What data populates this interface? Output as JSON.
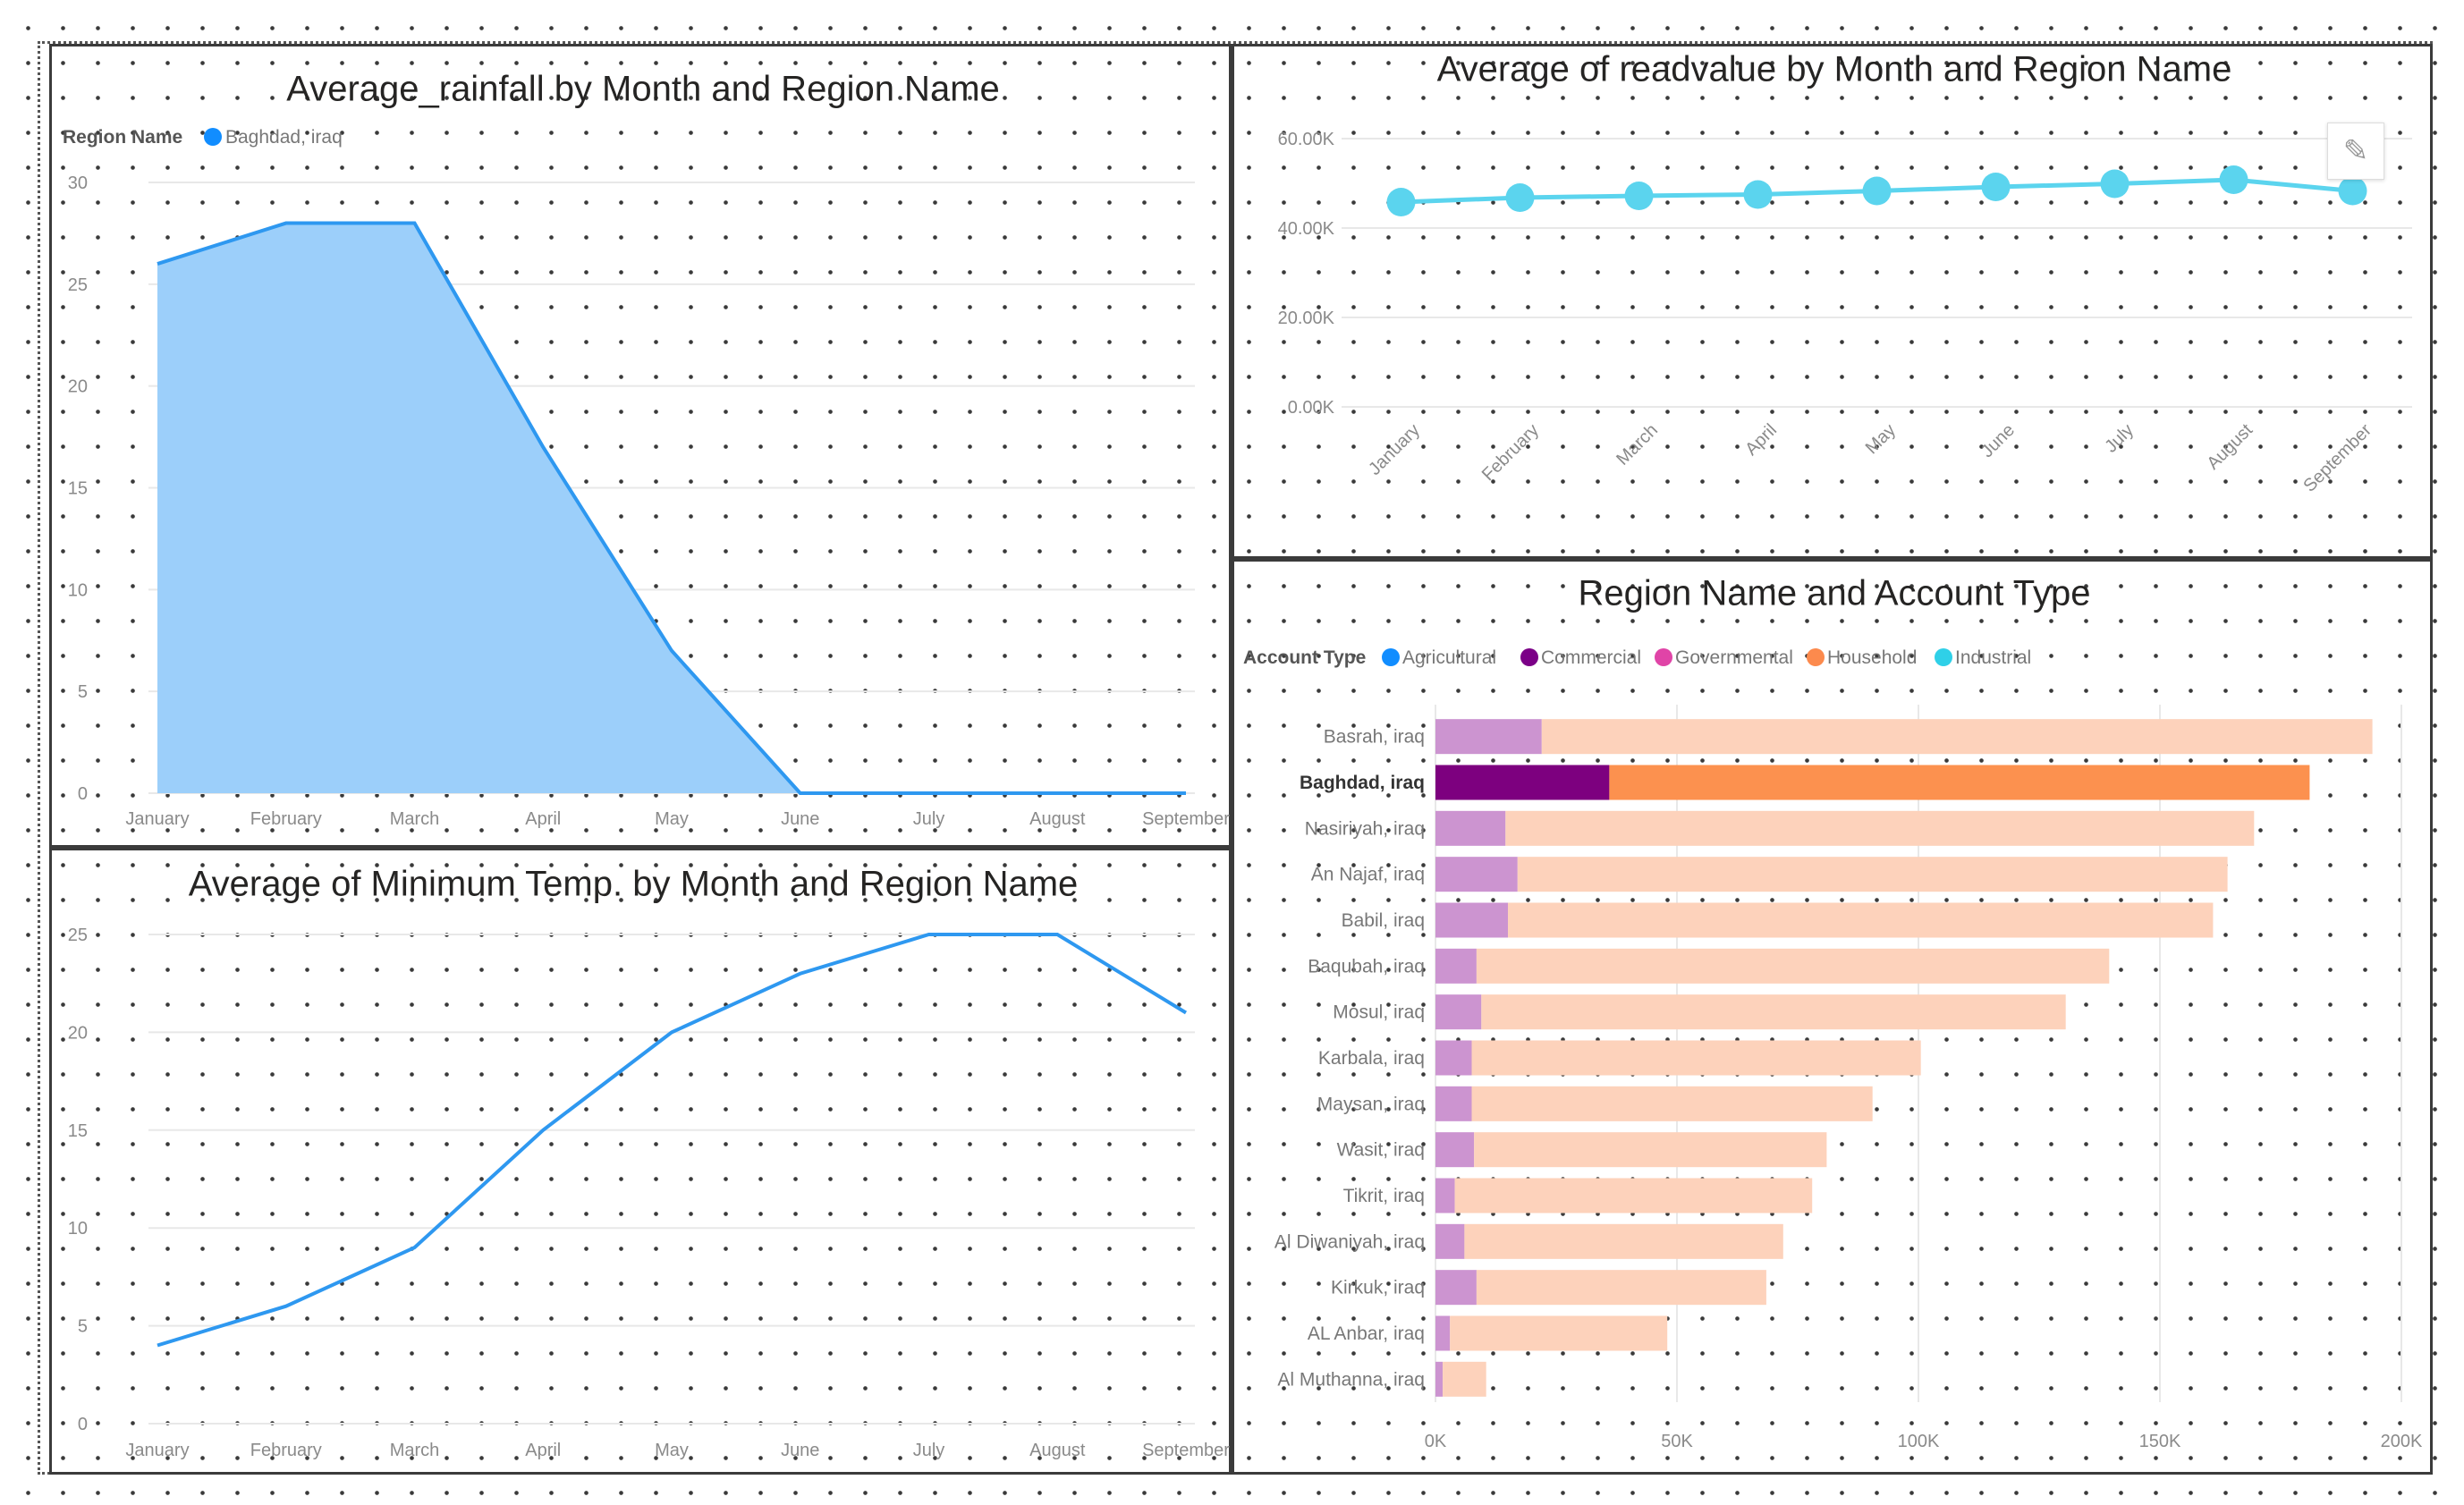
{
  "colors": {
    "rain_fill": "#9ccffa",
    "rain_line": "#2e98f0",
    "temp_line": "#2e98f0",
    "read_line": "#5bd4ee",
    "grid": "#e8e8e8",
    "agri": "#118dff",
    "commercial": "#7b0087",
    "governmental": "#e044a7",
    "household": "#fc8a4d",
    "industrial": "#2fd0e8",
    "commercial_faded": "#cc94d0",
    "household_faded": "#fdd2bb",
    "household_highlight": "#fc914f",
    "commercial_highlight": "#7d007f"
  },
  "chart_data": [
    {
      "id": "rainfall",
      "type": "area",
      "title": "Average_rainfall by Month and Region Name",
      "legend_title": "Region Name",
      "legend": [
        "Baghdad, iraq"
      ],
      "categories": [
        "January",
        "February",
        "March",
        "April",
        "May",
        "June",
        "July",
        "August",
        "September"
      ],
      "series": [
        {
          "name": "Baghdad, iraq",
          "values": [
            26,
            28,
            28,
            17,
            7,
            0,
            0,
            0,
            0
          ]
        }
      ],
      "ylim": [
        0,
        30
      ],
      "yticks": [
        0,
        5,
        10,
        15,
        20,
        25,
        30
      ],
      "ytick_labels": [
        "0",
        "5",
        "10",
        "15",
        "20",
        "25",
        "30"
      ]
    },
    {
      "id": "readvalue",
      "type": "line",
      "title": "Average of readvalue by Month and Region Name",
      "categories": [
        "January",
        "February",
        "March",
        "April",
        "May",
        "June",
        "July",
        "August",
        "September"
      ],
      "series": [
        {
          "name": "Baghdad, iraq",
          "values": [
            45800,
            46800,
            47200,
            47500,
            48300,
            49200,
            49900,
            50800,
            48300
          ]
        }
      ],
      "ylim": [
        0,
        60000
      ],
      "yticks": [
        0,
        20000,
        40000,
        60000
      ],
      "ytick_labels": [
        "0.00K",
        "20.00K",
        "40.00K",
        "60.00K"
      ]
    },
    {
      "id": "mintemp",
      "type": "line",
      "title": "Average of Minimum Temp. by Month and Region Name",
      "categories": [
        "January",
        "February",
        "March",
        "April",
        "May",
        "June",
        "July",
        "August",
        "September"
      ],
      "series": [
        {
          "name": "Baghdad, iraq",
          "values": [
            4,
            6,
            9,
            15,
            20,
            23,
            25,
            25,
            21
          ]
        }
      ],
      "ylim": [
        0,
        25
      ],
      "yticks": [
        0,
        5,
        10,
        15,
        20,
        25
      ],
      "ytick_labels": [
        "0",
        "5",
        "10",
        "15",
        "20",
        "25"
      ]
    },
    {
      "id": "account",
      "type": "bar",
      "orientation": "horizontal",
      "stacked": true,
      "title": "Region Name and Account Type",
      "legend_title": "Account Type",
      "legend": [
        "Agricultural",
        "Commercial",
        "Governmental",
        "Household",
        "Industrial"
      ],
      "highlighted": "Baghdad, iraq",
      "categories": [
        "Basrah, iraq",
        "Baghdad, iraq",
        "Nasiriyah, iraq",
        "An Najaf, iraq",
        "Babil, iraq",
        "Baqubah, iraq",
        "Mosul, iraq",
        "Karbala, iraq",
        "Maysan, iraq",
        "Wasit, iraq",
        "Tikrit, iraq",
        "Al Diwaniyah, iraq",
        "Kirkuk, iraq",
        "AL Anbar, iraq",
        "Al Muthanna, iraq"
      ],
      "series": [
        {
          "name": "Commercial",
          "values": [
            22000,
            36000,
            14500,
            17000,
            15000,
            8500,
            9500,
            7500,
            7500,
            8000,
            4000,
            6000,
            8500,
            3000,
            1500
          ]
        },
        {
          "name": "Household",
          "values": [
            172000,
            145000,
            155000,
            147000,
            146000,
            131000,
            121000,
            93000,
            83000,
            73000,
            74000,
            66000,
            60000,
            45000,
            9000
          ]
        }
      ],
      "xlim": [
        0,
        200000
      ],
      "xticks": [
        0,
        50000,
        100000,
        150000,
        200000
      ],
      "xtick_labels": [
        "0K",
        "50K",
        "100K",
        "150K",
        "200K"
      ]
    }
  ]
}
